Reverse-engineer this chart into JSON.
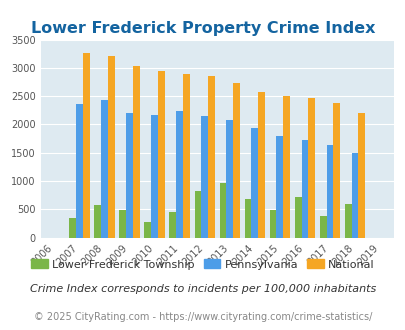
{
  "title": "Lower Frederick Property Crime Index",
  "years": [
    "2006",
    "2007",
    "2008",
    "2009",
    "2010",
    "2011",
    "2012",
    "2013",
    "2014",
    "2015",
    "2016",
    "2017",
    "2018",
    "2019"
  ],
  "lower_frederick": [
    0,
    350,
    570,
    490,
    275,
    445,
    820,
    970,
    685,
    490,
    720,
    375,
    590,
    0
  ],
  "pennsylvania": [
    0,
    2370,
    2435,
    2200,
    2175,
    2230,
    2155,
    2080,
    1940,
    1800,
    1720,
    1640,
    1490,
    0
  ],
  "national": [
    0,
    3255,
    3210,
    3035,
    2950,
    2900,
    2860,
    2730,
    2580,
    2495,
    2465,
    2380,
    2205,
    0
  ],
  "color_lf": "#7ab648",
  "color_pa": "#4d9de8",
  "color_nat": "#f5a623",
  "ylim": [
    0,
    3500
  ],
  "yticks": [
    0,
    500,
    1000,
    1500,
    2000,
    2500,
    3000,
    3500
  ],
  "bg_color": "#deeaf1",
  "title_color": "#1464a0",
  "legend_lf": "Lower Frederick Township",
  "legend_pa": "Pennsylvania",
  "legend_nat": "National",
  "footnote1": "Crime Index corresponds to incidents per 100,000 inhabitants",
  "footnote2": "© 2025 CityRating.com - https://www.cityrating.com/crime-statistics/",
  "title_fontsize": 11.5,
  "tick_fontsize": 7,
  "legend_fontsize": 8,
  "footnote1_fontsize": 8,
  "footnote2_fontsize": 7
}
